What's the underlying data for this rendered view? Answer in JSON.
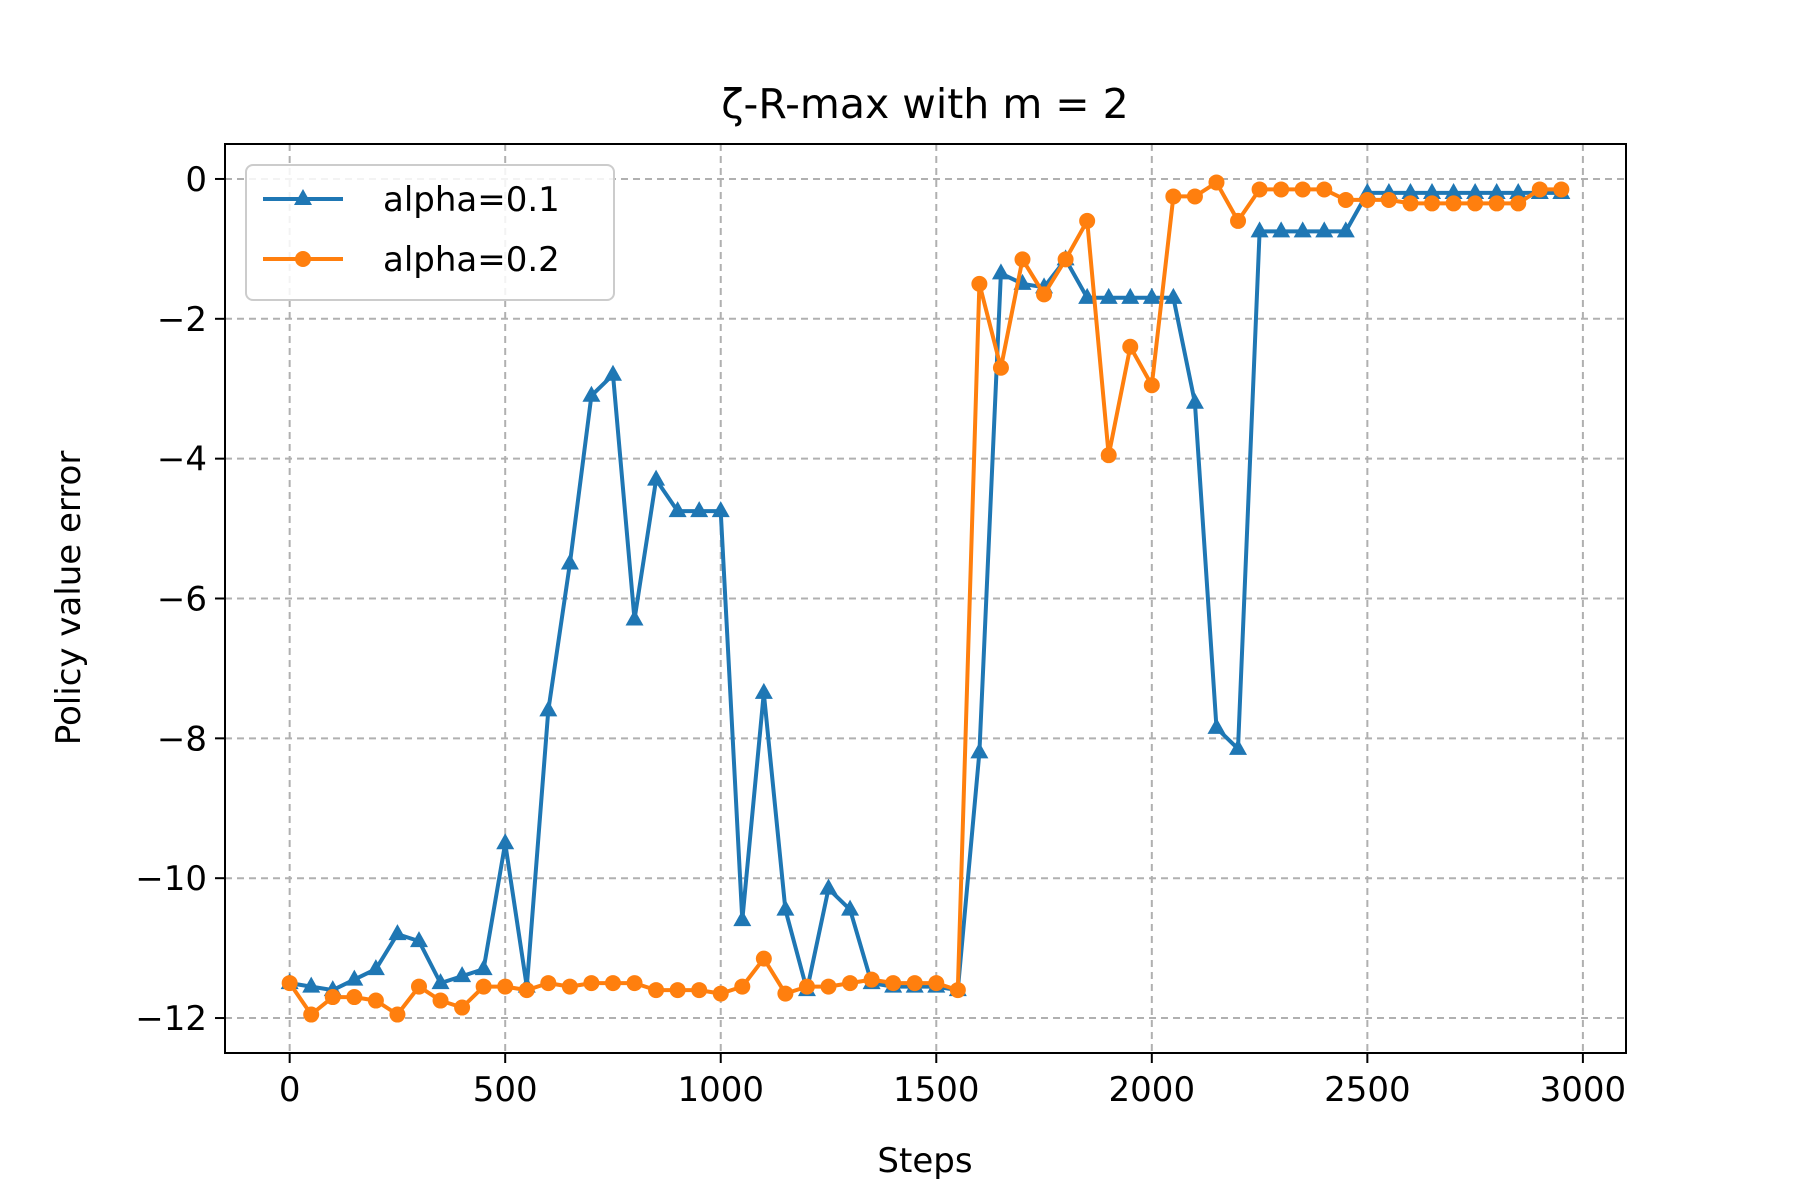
{
  "chart_data": {
    "type": "line",
    "title": "ζ-R-max with m = 2",
    "xlabel": "Steps",
    "ylabel": "Policy value error",
    "xlim": [
      -150,
      3100
    ],
    "ylim": [
      -12.5,
      0.5
    ],
    "xticks": [
      0,
      500,
      1000,
      1500,
      2000,
      2500,
      3000
    ],
    "yticks": [
      0,
      -2,
      -4,
      -6,
      -8,
      -10,
      -12
    ],
    "xtick_labels": [
      "0",
      "500",
      "1000",
      "1500",
      "2000",
      "2500",
      "3000"
    ],
    "ytick_labels": [
      "0",
      "−2",
      "−4",
      "−6",
      "−8",
      "−10",
      "−12"
    ],
    "grid": true,
    "grid_style": "dashed",
    "legend_position": "upper-left",
    "x": [
      0,
      50,
      100,
      150,
      200,
      250,
      300,
      350,
      400,
      450,
      500,
      550,
      600,
      650,
      700,
      750,
      800,
      850,
      900,
      950,
      1000,
      1050,
      1100,
      1150,
      1200,
      1250,
      1300,
      1350,
      1400,
      1450,
      1500,
      1550,
      1600,
      1650,
      1700,
      1750,
      1800,
      1850,
      1900,
      1950,
      2000,
      2050,
      2100,
      2150,
      2200,
      2250,
      2300,
      2350,
      2400,
      2450,
      2500,
      2550,
      2600,
      2650,
      2700,
      2750,
      2800,
      2850,
      2900,
      2950
    ],
    "series": [
      {
        "name": "alpha=0.1",
        "color": "#1f77b4",
        "marker": "triangle",
        "values": [
          -11.5,
          -11.55,
          -11.6,
          -11.45,
          -11.3,
          -10.8,
          -10.9,
          -11.5,
          -11.4,
          -11.3,
          -9.5,
          -11.55,
          -7.6,
          -5.5,
          -3.1,
          -2.8,
          -6.3,
          -4.3,
          -4.75,
          -4.75,
          -4.75,
          -10.6,
          -7.35,
          -10.45,
          -11.6,
          -10.15,
          -10.45,
          -11.5,
          -11.55,
          -11.55,
          -11.55,
          -11.6,
          -8.2,
          -1.35,
          -1.5,
          -1.55,
          -1.15,
          -1.7,
          -1.7,
          -1.7,
          -1.7,
          -1.7,
          -3.2,
          -7.85,
          -8.15,
          -0.75,
          -0.75,
          -0.75,
          -0.75,
          -0.75,
          -0.2,
          -0.2,
          -0.2,
          -0.2,
          -0.2,
          -0.2,
          -0.2,
          -0.2,
          -0.2,
          -0.2
        ]
      },
      {
        "name": "alpha=0.2",
        "color": "#ff7f0e",
        "marker": "circle",
        "values": [
          -11.5,
          -11.95,
          -11.7,
          -11.7,
          -11.75,
          -11.95,
          -11.55,
          -11.75,
          -11.85,
          -11.55,
          -11.55,
          -11.6,
          -11.5,
          -11.55,
          -11.5,
          -11.5,
          -11.5,
          -11.6,
          -11.6,
          -11.6,
          -11.65,
          -11.55,
          -11.15,
          -11.65,
          -11.55,
          -11.55,
          -11.5,
          -11.45,
          -11.5,
          -11.5,
          -11.5,
          -11.6,
          -1.5,
          -2.7,
          -1.15,
          -1.65,
          -1.15,
          -0.6,
          -3.95,
          -2.4,
          -2.95,
          -0.25,
          -0.25,
          -0.05,
          -0.6,
          -0.15,
          -0.15,
          -0.15,
          -0.15,
          -0.3,
          -0.3,
          -0.3,
          -0.35,
          -0.35,
          -0.35,
          -0.35,
          -0.35,
          -0.35,
          -0.15,
          -0.15
        ]
      }
    ]
  }
}
